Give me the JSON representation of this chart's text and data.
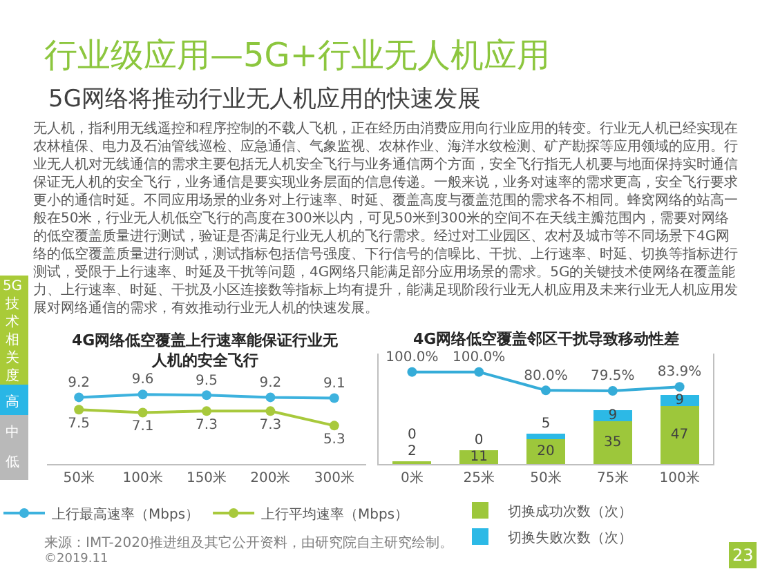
{
  "chart_data": [
    {
      "type": "other",
      "title": "行业级应用—5G+行业无人机应用",
      "subtitle": "5G网络将推动行业无人机应用的快速发展",
      "annotations": [
        "无人机，指利用无线遥控和程序控制的不载人飞机，正在经历由消费应用向行业应用的转变。行业无人机已经实现在农林植保、电力及石油管线巡检、应急通信、气象监视、农林作业、海洋水纹检测、矿产勘探等应用领域的应用。行业无人机对无线通信的需求主要包括无人机安全飞行与业务通信两个方面，安全飞行指无人机要与地面保持实时通信保证无人机的安全飞行，业务通信是要实现业务层面的信息传递。一般来说，业务对速率的需求更高，安全飞行要求更小的通信时延。不同应用场景的业务对上行速率、时延、覆盖高度与覆盖范围的需求各不相同。蜂窝网络的站高一般在50米，行业无人机低空飞行的高度在300米以内，可见50米到300米的空间不在天线主瓣范围内，需要对网络的低空覆盖质量进行测试，验证是否满足行业无人机的飞行需求。经过对工业园区、农村及城市等不同场景下4G网络的低空覆盖质量进行测试，测试指标包括信号强度、下行信号的信噪比、干扰、上行速率、时延、切换等指标进行测试，受限于上行速率、时延及干扰等问题，4G网络只能满足部分应用场景的需求。5G的关键技术使网络在覆盖能力、上行速率、时延、干扰及小区连接数等指标上均有提升，能满足现阶段行业无人机应用及未来行业无人机应用发展对网络通信的需求，有效推动行业无人机的快速发展。",
        "5G技术相关度",
        "高",
        "中",
        "低",
        "来源：IMT-2020推进组及其它公开资料，由研究院自主研究绘制。",
        "©2019.11",
        "23"
      ]
    },
    {
      "type": "line",
      "title": "4G网络低空覆盖上行速率能保证行业无人机的安全飞行",
      "categories": [
        "50米",
        "100米",
        "150米",
        "200米",
        "300米"
      ],
      "series": [
        {
          "name": "上行最高速率（Mbps）",
          "color": "#3db2de",
          "values": [
            9.2,
            9.6,
            9.5,
            9.2,
            9.1
          ]
        },
        {
          "name": "上行平均速率（Mbps）",
          "color": "#a8c93c",
          "values": [
            7.5,
            7.1,
            7.3,
            7.3,
            5.3
          ]
        }
      ],
      "tick_labels": "x",
      "data_labels": true,
      "marker": "circle",
      "legend": "bottom"
    },
    {
      "type": "bar",
      "title": "4G网络低空覆盖邻区干扰导致移动性差",
      "categories": [
        "0米",
        "25米",
        "50米",
        "75米",
        "100米"
      ],
      "stacked": true,
      "series": [
        {
          "name": "切换成功次数（次）",
          "color": "#9dc73b",
          "values": [
            2,
            11,
            20,
            35,
            47
          ]
        },
        {
          "name": "切换失败次数（次）",
          "color": "#2cb9e6",
          "values": [
            0,
            0,
            5,
            9,
            9
          ]
        },
        {
          "type": "line",
          "axis": "y2",
          "color": "#35acd8",
          "values": [
            100.0,
            100.0,
            80.0,
            79.5,
            83.9
          ],
          "value_labels": [
            "100.0%",
            "100.0%",
            "80.0%",
            "79.5%",
            "83.9%"
          ]
        }
      ],
      "ylim": [
        0,
        90
      ],
      "y2lim": [
        0,
        120
      ],
      "tick_labels": "x",
      "data_labels": true,
      "marker": "circle",
      "legend": "bottom"
    }
  ]
}
